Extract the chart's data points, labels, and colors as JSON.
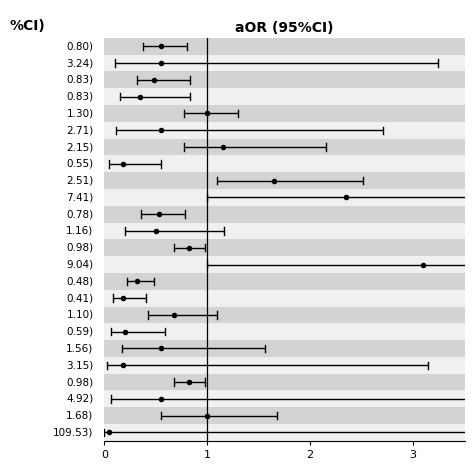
{
  "title": "aOR (95%CI)",
  "top_left_label": "%CI)",
  "rows": [
    {
      "or": 0.55,
      "ci_low": 0.38,
      "ci_high": 0.8,
      "label": "0.80)",
      "shaded": true
    },
    {
      "or": 0.55,
      "ci_low": 0.1,
      "ci_high": 3.24,
      "label": "3.24)",
      "shaded": false
    },
    {
      "or": 0.48,
      "ci_low": 0.32,
      "ci_high": 0.83,
      "label": "0.83)",
      "shaded": true
    },
    {
      "or": 0.35,
      "ci_low": 0.15,
      "ci_high": 0.83,
      "label": "0.83)",
      "shaded": false
    },
    {
      "or": 1.0,
      "ci_low": 0.77,
      "ci_high": 1.3,
      "label": "1.30)",
      "shaded": true
    },
    {
      "or": 0.55,
      "ci_low": 0.11,
      "ci_high": 2.71,
      "label": "2.71)",
      "shaded": false
    },
    {
      "or": 1.15,
      "ci_low": 0.77,
      "ci_high": 2.15,
      "label": "2.15)",
      "shaded": true
    },
    {
      "or": 0.18,
      "ci_low": 0.05,
      "ci_high": 0.55,
      "label": "0.55)",
      "shaded": false
    },
    {
      "or": 1.65,
      "ci_low": 1.1,
      "ci_high": 2.51,
      "label": "2.51)",
      "shaded": true
    },
    {
      "or": 2.35,
      "ci_low": 1.0,
      "ci_high": 7.41,
      "label": "7.41)",
      "shaded": false
    },
    {
      "or": 0.53,
      "ci_low": 0.36,
      "ci_high": 0.78,
      "label": "0.78)",
      "shaded": true
    },
    {
      "or": 0.5,
      "ci_low": 0.2,
      "ci_high": 1.16,
      "label": "1.16)",
      "shaded": false
    },
    {
      "or": 0.82,
      "ci_low": 0.68,
      "ci_high": 0.98,
      "label": "0.98)",
      "shaded": true
    },
    {
      "or": 3.1,
      "ci_low": 1.0,
      "ci_high": 9.04,
      "label": "9.04)",
      "shaded": false
    },
    {
      "or": 0.32,
      "ci_low": 0.22,
      "ci_high": 0.48,
      "label": "0.48)",
      "shaded": true
    },
    {
      "or": 0.18,
      "ci_low": 0.08,
      "ci_high": 0.41,
      "label": "0.41)",
      "shaded": false
    },
    {
      "or": 0.68,
      "ci_low": 0.42,
      "ci_high": 1.1,
      "label": "1.10)",
      "shaded": true
    },
    {
      "or": 0.2,
      "ci_low": 0.07,
      "ci_high": 0.59,
      "label": "0.59)",
      "shaded": false
    },
    {
      "or": 0.55,
      "ci_low": 0.17,
      "ci_high": 1.56,
      "label": "1.56)",
      "shaded": true
    },
    {
      "or": 0.18,
      "ci_low": 0.03,
      "ci_high": 3.15,
      "label": "3.15)",
      "shaded": false
    },
    {
      "or": 0.82,
      "ci_low": 0.68,
      "ci_high": 0.98,
      "label": "0.98)",
      "shaded": true
    },
    {
      "or": 0.55,
      "ci_low": 0.07,
      "ci_high": 4.92,
      "label": "4.92)",
      "shaded": false
    },
    {
      "or": 1.0,
      "ci_low": 0.55,
      "ci_high": 1.68,
      "label": "1.68)",
      "shaded": true
    },
    {
      "or": 0.05,
      "ci_low": 0.0,
      "ci_high": 109.53,
      "label": "109.53)",
      "shaded": false
    }
  ],
  "xlim": [
    0,
    3.5
  ],
  "xticks": [
    0,
    1,
    2,
    3
  ],
  "vline_x": 1.0,
  "shaded_color": "#d3d3d3",
  "white_color": "#f0f0f0",
  "dot_color": "#000000",
  "line_color": "#000000",
  "label_fontsize": 7.5,
  "title_fontsize": 10,
  "cap_size": 0.22
}
